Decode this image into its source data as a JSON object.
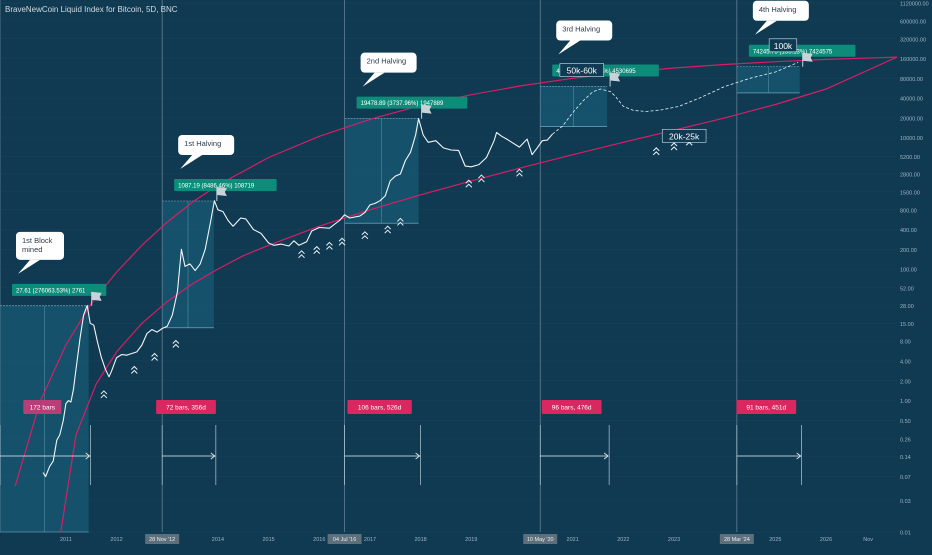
{
  "title": "BraveNewCoin Liquid Index for Bitcoin, 5D, BNC",
  "colors": {
    "background": "#0f3a52",
    "price_line": "#f2f6f8",
    "curve": "#d81e64",
    "label_green": "#0e8c7a",
    "bars_label": "#d9275f",
    "bars_label_first": "#b93e78",
    "measure_fill": "#1b6580",
    "grid": "#2a4f64",
    "axis_text": "#9fb4c2"
  },
  "chart_data": {
    "type": "line",
    "title": "BraveNewCoin Liquid Index for Bitcoin, 5D, BNC",
    "xlabel": "",
    "ylabel": "",
    "y_scale": "log",
    "ylim": [
      0.01,
      1120000
    ],
    "xlim": [
      2009.7,
      2027.4
    ],
    "x_ticks": [
      {
        "label": "2011",
        "x": 2011.0
      },
      {
        "label": "2012",
        "x": 2012.0
      },
      {
        "label": "2014",
        "x": 2014.0
      },
      {
        "label": "2015",
        "x": 2015.0
      },
      {
        "label": "2016",
        "x": 2016.0
      },
      {
        "label": "2017",
        "x": 2017.0
      },
      {
        "label": "2018",
        "x": 2018.0
      },
      {
        "label": "2019",
        "x": 2019.0
      },
      {
        "label": "2021",
        "x": 2021.0
      },
      {
        "label": "2022",
        "x": 2022.0
      },
      {
        "label": "2023",
        "x": 2023.0
      },
      {
        "label": "2025",
        "x": 2025.0
      },
      {
        "label": "2026",
        "x": 2026.0
      },
      {
        "label": "Nov",
        "x": 2026.83
      }
    ],
    "x_highlight_ticks": [
      {
        "label": "28 Nov '12",
        "x": 2012.9
      },
      {
        "label": "04 Jul '16",
        "x": 2016.5
      },
      {
        "label": "10 May '20",
        "x": 2020.36
      },
      {
        "label": "28 Mar '24",
        "x": 2024.24
      }
    ],
    "y_ticks": [
      "1120000.00",
      "600000.00",
      "320000.00",
      "160000.00",
      "80000.00",
      "40000.00",
      "20000.00",
      "10000.00",
      "5200.00",
      "2800.00",
      "1500.00",
      "800.00",
      "400.00",
      "200.00",
      "100.00",
      "52.00",
      "28.00",
      "15.00",
      "8.00",
      "4.00",
      "2.00",
      "1.00",
      "0.50",
      "0.26",
      "0.14",
      "0.07",
      "0.03",
      "0.01"
    ],
    "series": [
      {
        "values": [
          [
            2010.55,
            0.08
          ],
          [
            2010.6,
            0.07
          ],
          [
            2010.68,
            0.1
          ],
          [
            2010.75,
            0.12
          ],
          [
            2010.82,
            0.25
          ],
          [
            2010.88,
            0.3
          ],
          [
            2010.95,
            0.5
          ],
          [
            2011.0,
            0.9
          ],
          [
            2011.05,
            1.0
          ],
          [
            2011.1,
            0.95
          ],
          [
            2011.15,
            1.5
          ],
          [
            2011.2,
            3.0
          ],
          [
            2011.28,
            9.0
          ],
          [
            2011.35,
            20
          ],
          [
            2011.42,
            28
          ],
          [
            2011.48,
            15
          ],
          [
            2011.55,
            14
          ],
          [
            2011.62,
            8
          ],
          [
            2011.7,
            4.5
          ],
          [
            2011.78,
            3.0
          ],
          [
            2011.85,
            2.3
          ],
          [
            2011.9,
            2.8
          ],
          [
            2012.0,
            4.5
          ],
          [
            2012.1,
            5.0
          ],
          [
            2012.2,
            4.9
          ],
          [
            2012.3,
            5.2
          ],
          [
            2012.4,
            5.5
          ],
          [
            2012.5,
            7.0
          ],
          [
            2012.6,
            10.5
          ],
          [
            2012.7,
            12
          ],
          [
            2012.8,
            11
          ],
          [
            2012.9,
            12.5
          ],
          [
            2013.0,
            13.5
          ],
          [
            2013.1,
            20
          ],
          [
            2013.2,
            45
          ],
          [
            2013.28,
            200
          ],
          [
            2013.35,
            110
          ],
          [
            2013.45,
            120
          ],
          [
            2013.55,
            95
          ],
          [
            2013.65,
            120
          ],
          [
            2013.75,
            200
          ],
          [
            2013.85,
            500
          ],
          [
            2013.93,
            1100
          ],
          [
            2014.0,
            800
          ],
          [
            2014.1,
            750
          ],
          [
            2014.2,
            550
          ],
          [
            2014.3,
            450
          ],
          [
            2014.45,
            600
          ],
          [
            2014.55,
            580
          ],
          [
            2014.7,
            400
          ],
          [
            2014.85,
            350
          ],
          [
            2015.0,
            250
          ],
          [
            2015.1,
            230
          ],
          [
            2015.25,
            240
          ],
          [
            2015.4,
            225
          ],
          [
            2015.5,
            270
          ],
          [
            2015.6,
            230
          ],
          [
            2015.75,
            260
          ],
          [
            2015.85,
            380
          ],
          [
            2016.0,
            430
          ],
          [
            2016.2,
            420
          ],
          [
            2016.4,
            550
          ],
          [
            2016.5,
            670
          ],
          [
            2016.6,
            600
          ],
          [
            2016.8,
            640
          ],
          [
            2016.9,
            730
          ],
          [
            2017.0,
            950
          ],
          [
            2017.1,
            1000
          ],
          [
            2017.2,
            1100
          ],
          [
            2017.3,
            1300
          ],
          [
            2017.4,
            2200
          ],
          [
            2017.5,
            2600
          ],
          [
            2017.6,
            2800
          ],
          [
            2017.7,
            4500
          ],
          [
            2017.8,
            6000
          ],
          [
            2017.9,
            11000
          ],
          [
            2017.96,
            19500
          ],
          [
            2018.05,
            11000
          ],
          [
            2018.15,
            8500
          ],
          [
            2018.3,
            9000
          ],
          [
            2018.45,
            7000
          ],
          [
            2018.6,
            6500
          ],
          [
            2018.75,
            6400
          ],
          [
            2018.88,
            3700
          ],
          [
            2019.0,
            3600
          ],
          [
            2019.15,
            3900
          ],
          [
            2019.3,
            5000
          ],
          [
            2019.45,
            9000
          ],
          [
            2019.5,
            12000
          ],
          [
            2019.6,
            10500
          ],
          [
            2019.7,
            9500
          ],
          [
            2019.8,
            8500
          ],
          [
            2019.95,
            7200
          ],
          [
            2020.1,
            9500
          ],
          [
            2020.2,
            5500
          ],
          [
            2020.3,
            7000
          ],
          [
            2020.4,
            9000
          ],
          [
            2020.5,
            9200
          ],
          [
            2020.6,
            11300
          ]
        ]
      }
    ],
    "projection": [
      [
        2020.6,
        11300
      ],
      [
        2020.8,
        15000
      ],
      [
        2021.0,
        24000
      ],
      [
        2021.2,
        36000
      ],
      [
        2021.4,
        50000
      ],
      [
        2021.55,
        55000
      ],
      [
        2021.75,
        50000
      ],
      [
        2021.85,
        42000
      ],
      [
        2022.0,
        30000
      ],
      [
        2022.2,
        26000
      ],
      [
        2022.45,
        25000
      ],
      [
        2022.75,
        26500
      ],
      [
        2023.1,
        30000
      ],
      [
        2023.5,
        40000
      ],
      [
        2024.0,
        60000
      ],
      [
        2024.5,
        80000
      ],
      [
        2025.0,
        100000
      ],
      [
        2025.45,
        140000
      ]
    ],
    "upper_curve": [
      [
        2010.0,
        0.05
      ],
      [
        2010.5,
        1.0
      ],
      [
        2011.0,
        7
      ],
      [
        2011.5,
        30
      ],
      [
        2012.0,
        90
      ],
      [
        2012.5,
        230
      ],
      [
        2013.0,
        520
      ],
      [
        2013.5,
        1050
      ],
      [
        2014.0,
        1900
      ],
      [
        2015.0,
        5000
      ],
      [
        2016.0,
        10500
      ],
      [
        2017.0,
        19000
      ],
      [
        2018.0,
        31000
      ],
      [
        2019.0,
        45000
      ],
      [
        2020.0,
        62000
      ],
      [
        2021.0,
        80000
      ],
      [
        2022.0,
        98000
      ],
      [
        2023.0,
        115000
      ],
      [
        2024.0,
        130000
      ],
      [
        2025.0,
        143000
      ],
      [
        2026.0,
        155000
      ],
      [
        2027.4,
        168000
      ]
    ],
    "lower_curve": [
      [
        2010.9,
        0.01
      ],
      [
        2011.2,
        0.3
      ],
      [
        2011.6,
        1.8
      ],
      [
        2012.0,
        5.5
      ],
      [
        2012.5,
        15
      ],
      [
        2013.0,
        32
      ],
      [
        2013.5,
        60
      ],
      [
        2014.0,
        100
      ],
      [
        2014.5,
        160
      ],
      [
        2015.0,
        230
      ],
      [
        2016.0,
        450
      ],
      [
        2017.0,
        800
      ],
      [
        2018.0,
        1350
      ],
      [
        2019.0,
        2200
      ],
      [
        2020.0,
        3500
      ],
      [
        2021.0,
        5500
      ],
      [
        2022.0,
        8500
      ],
      [
        2023.0,
        13000
      ],
      [
        2024.0,
        20000
      ],
      [
        2025.0,
        32000
      ],
      [
        2026.0,
        55000
      ],
      [
        2027.4,
        168000
      ]
    ],
    "cycles": [
      {
        "start_x": 2009.7,
        "end_x": 2011.45,
        "low": 0.01,
        "high": 27.61,
        "label": "27.61 (276063.53%) 2761",
        "callout": [
          "1st Block",
          "mined"
        ],
        "bars": "172 bars"
      },
      {
        "start_x": 2012.9,
        "end_x": 2013.92,
        "low": 12.8,
        "high": 1087.19,
        "label": "1087.19 (8486.46%) 108719",
        "callout": [
          "1st Halving"
        ],
        "bars": "72 bars, 356d"
      },
      {
        "start_x": 2016.5,
        "end_x": 2017.96,
        "low": 500,
        "high": 19478.89,
        "label": "19478.89 (3737.96%) 1947889",
        "callout": [
          "2nd Halving"
        ],
        "bars": "106 bars, 526d"
      },
      {
        "start_x": 2020.36,
        "end_x": 2021.68,
        "low": 14700,
        "high": 60000,
        "label": "45306.95 (308.36%) 4530695",
        "callout": [
          "3rd Halving"
        ],
        "bars": "96 bars, 476d"
      },
      {
        "start_x": 2024.24,
        "end_x": 2025.48,
        "low": 48000,
        "high": 120000,
        "label": "74245.75 (155.13%) 7424575",
        "callout": [
          "4th Halving"
        ],
        "bars": "91 bars, 451d"
      }
    ],
    "annotations": [
      {
        "text": "50k-60k",
        "x": 2021.18,
        "y": 105000
      },
      {
        "text": "20k-25k",
        "x": 2023.2,
        "y": 10500
      },
      {
        "text": "100k",
        "x": 2025.15,
        "y": 250000
      }
    ],
    "buy_markers": [
      [
        2011.75,
        1.4
      ],
      [
        2012.35,
        3.3
      ],
      [
        2012.75,
        5.2
      ],
      [
        2013.17,
        8.2
      ],
      [
        2015.65,
        190
      ],
      [
        2015.95,
        220
      ],
      [
        2016.2,
        255
      ],
      [
        2016.45,
        295
      ],
      [
        2016.9,
        370
      ],
      [
        2017.35,
        450
      ],
      [
        2017.6,
        590
      ],
      [
        2018.95,
        2250
      ],
      [
        2019.2,
        2700
      ],
      [
        2019.95,
        3300
      ],
      [
        2022.65,
        7000
      ],
      [
        2023.0,
        8300
      ],
      [
        2023.3,
        9800
      ]
    ]
  }
}
